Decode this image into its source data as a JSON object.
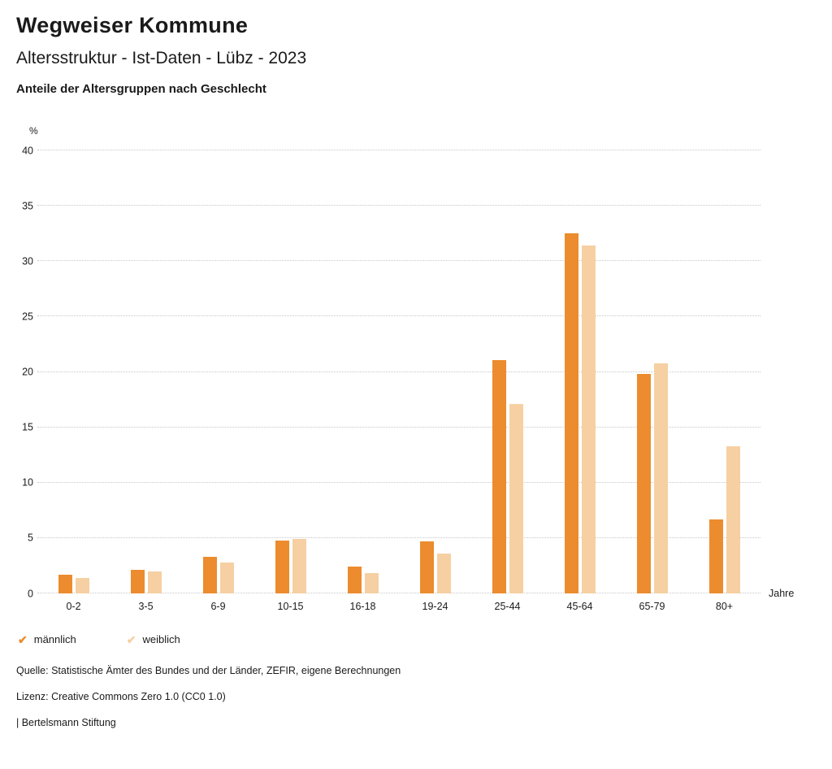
{
  "header": {
    "title": "Wegweiser Kommune",
    "subtitle": "Altersstruktur - Ist-Daten - Lübz - 2023",
    "chart_heading": "Anteile der Altersgruppen nach Geschlecht"
  },
  "chart_data": {
    "type": "bar",
    "title": "Anteile der Altersgruppen nach Geschlecht",
    "categories": [
      "0-2",
      "3-5",
      "6-9",
      "10-15",
      "16-18",
      "19-24",
      "25-44",
      "45-64",
      "65-79",
      "80+"
    ],
    "series": [
      {
        "name": "männlich",
        "color": "#ec8c2e",
        "values": [
          1.7,
          2.1,
          3.3,
          4.8,
          2.4,
          4.7,
          21.1,
          32.5,
          19.8,
          6.7
        ]
      },
      {
        "name": "weiblich",
        "color": "#f6d0a2",
        "values": [
          1.4,
          2.0,
          2.8,
          4.9,
          1.8,
          3.6,
          17.1,
          31.4,
          20.8,
          13.3
        ]
      }
    ],
    "ylabel": "%",
    "xlabel": "Jahre",
    "ylim": [
      0,
      40
    ],
    "ytick_step": 5,
    "grid": true,
    "legend_position": "bottom"
  },
  "legend": {
    "check_icon": "✔"
  },
  "footer": {
    "source": "Quelle: Statistische Ämter des Bundes und der Länder, ZEFIR, eigene Berechnungen",
    "license": "Lizenz: Creative Commons Zero 1.0 (CC0 1.0)",
    "attribution": "| Bertelsmann Stiftung"
  }
}
